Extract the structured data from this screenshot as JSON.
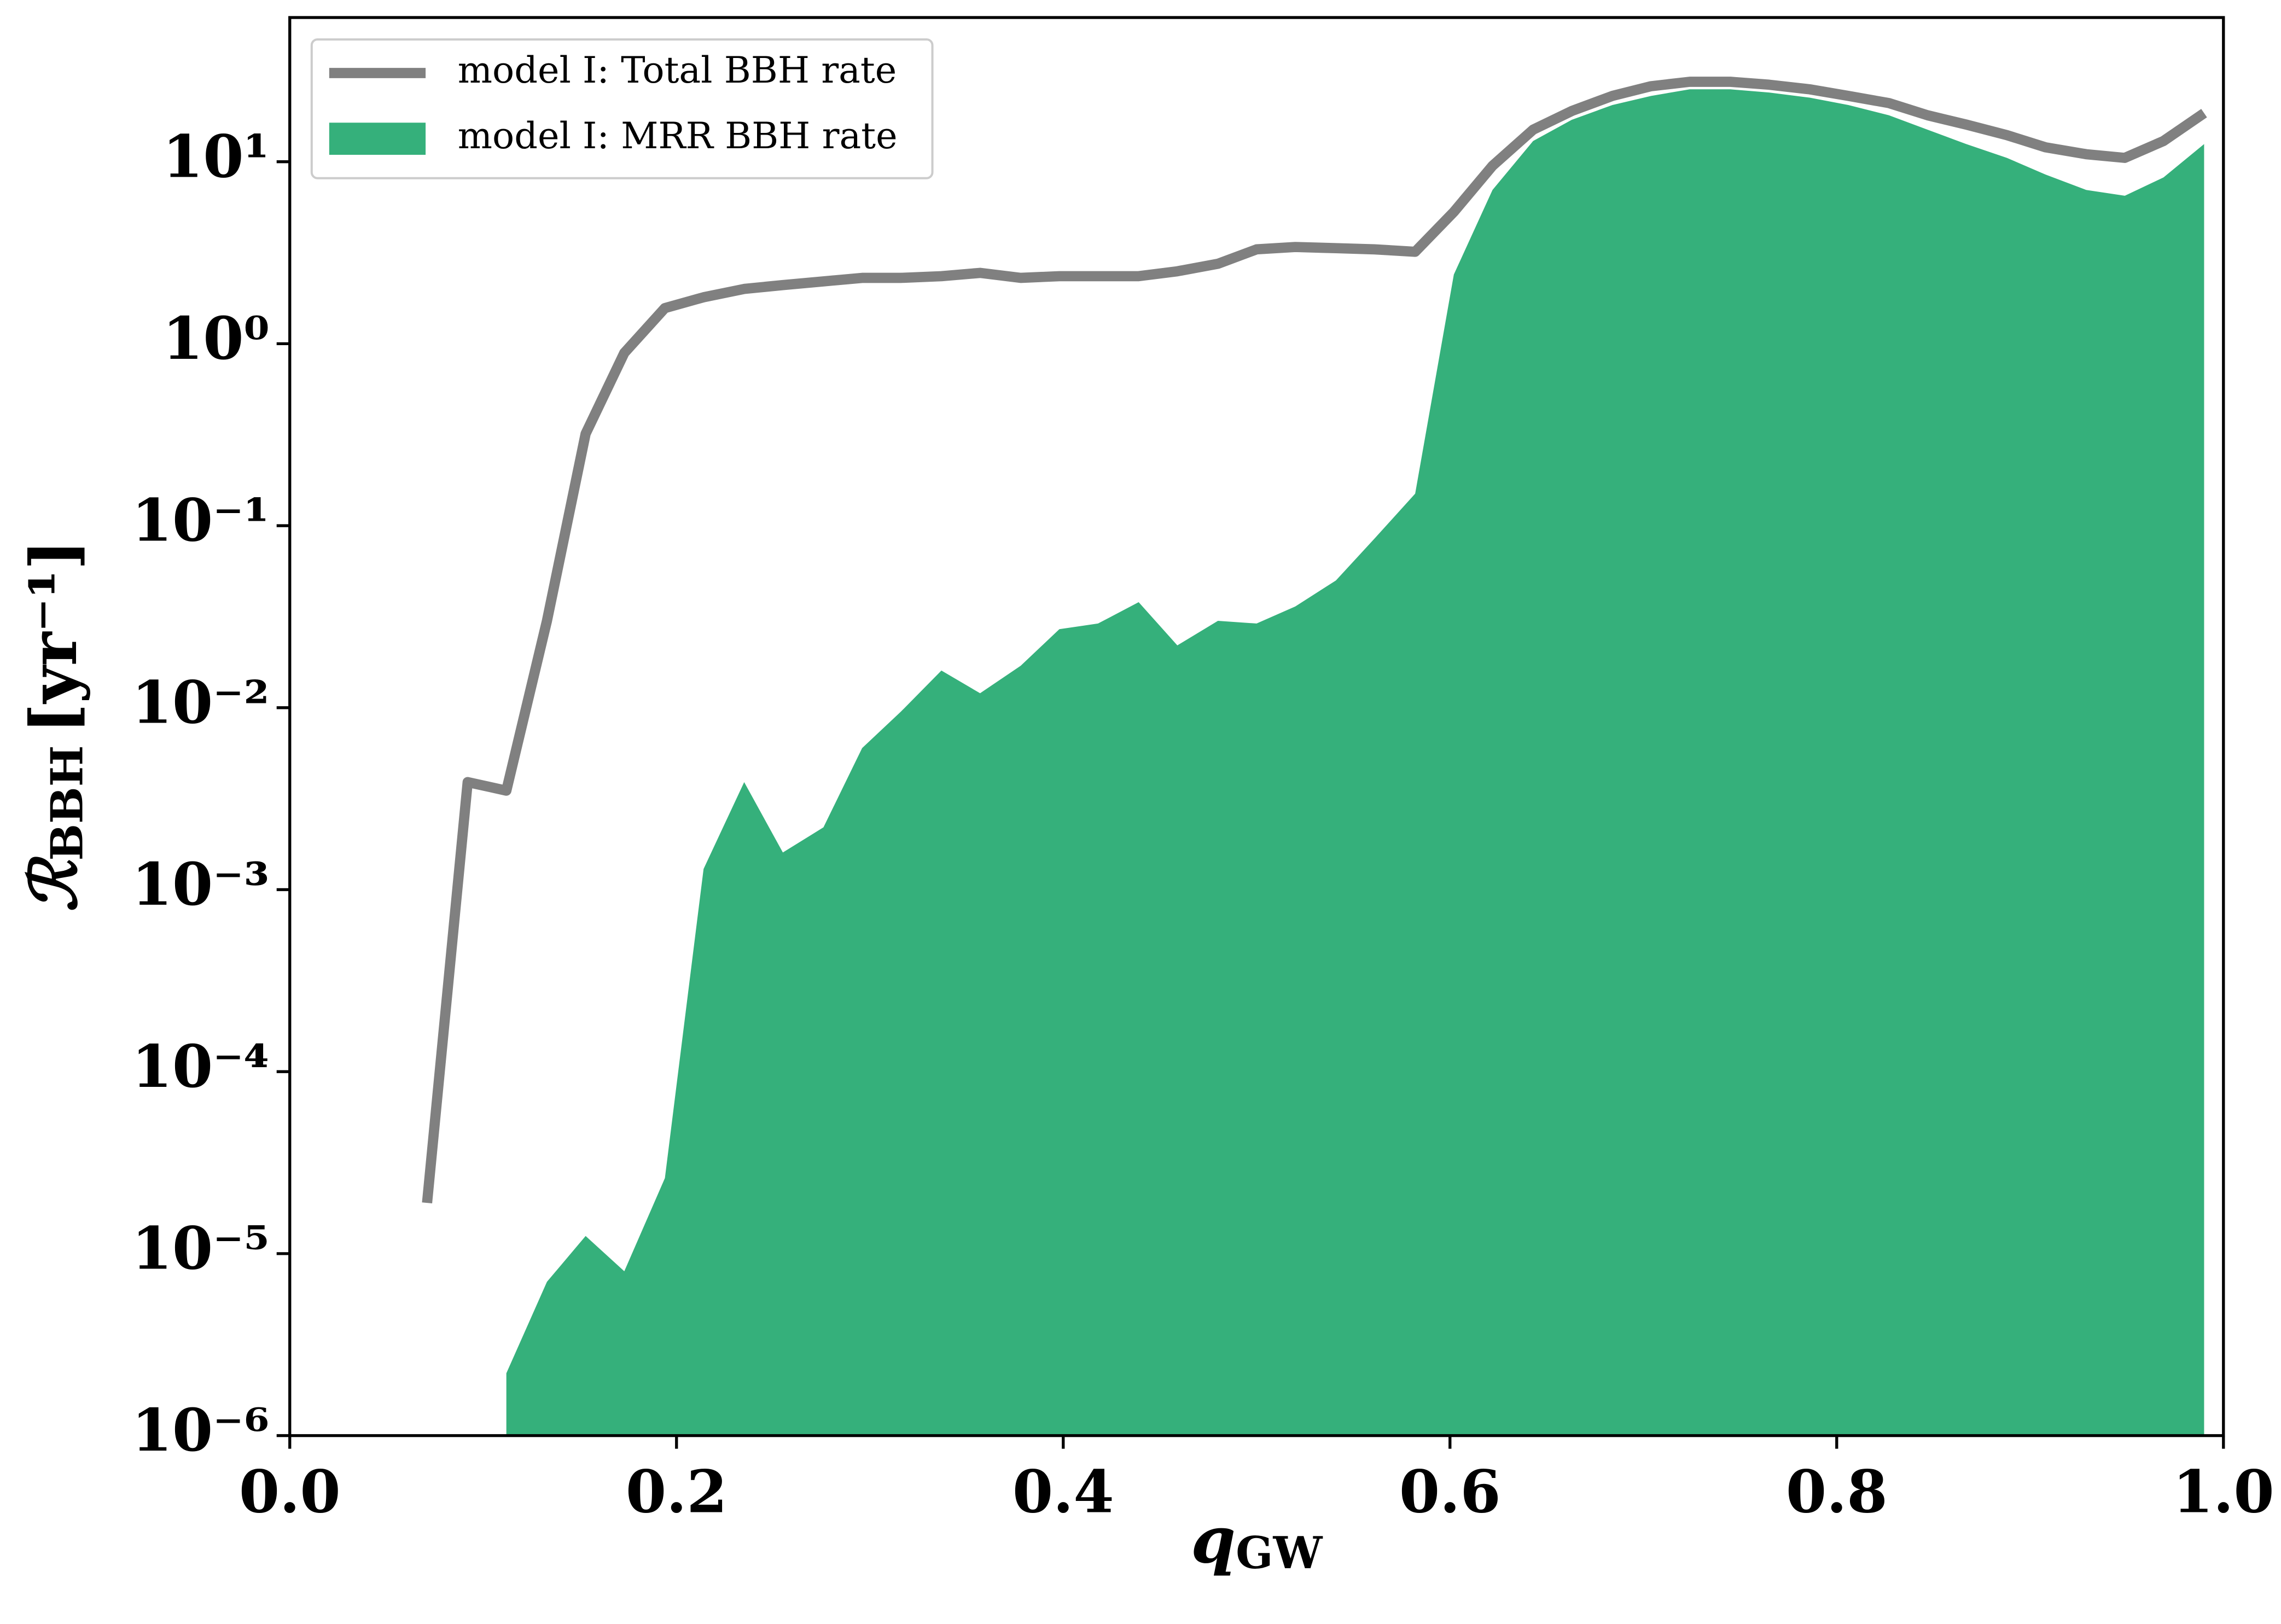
{
  "chart_data": {
    "type": "line-area",
    "xlabel": {
      "symbol": "q",
      "subscript": "GW"
    },
    "ylabel": {
      "symbol": "ℛ",
      "subscript": "BBH",
      "unit": "[yr⁻¹]"
    },
    "xlim": [
      0.0,
      1.0
    ],
    "xticks": [
      {
        "value": 0.0,
        "label": "0.0"
      },
      {
        "value": 0.2,
        "label": "0.2"
      },
      {
        "value": 0.4,
        "label": "0.4"
      },
      {
        "value": 0.6,
        "label": "0.6"
      },
      {
        "value": 0.8,
        "label": "0.8"
      },
      {
        "value": 1.0,
        "label": "1.0"
      }
    ],
    "ylim": [
      1e-06,
      62
    ],
    "yscale": "log",
    "yticks": [
      {
        "value": 1e-06,
        "label": "10⁻⁶"
      },
      {
        "value": 1e-05,
        "label": "10⁻⁵"
      },
      {
        "value": 0.0001,
        "label": "10⁻⁴"
      },
      {
        "value": 0.001,
        "label": "10⁻³"
      },
      {
        "value": 0.01,
        "label": "10⁻²"
      },
      {
        "value": 0.1,
        "label": "10⁻¹"
      },
      {
        "value": 1,
        "label": "10⁰"
      },
      {
        "value": 10,
        "label": "10¹"
      }
    ],
    "legend": "upper left",
    "series": [
      {
        "name": "model I: Total BBH rate",
        "kind": "line",
        "color": "#808080",
        "x": [
          0.071,
          0.092,
          0.112,
          0.133,
          0.153,
          0.173,
          0.194,
          0.214,
          0.235,
          0.255,
          0.276,
          0.296,
          0.316,
          0.337,
          0.357,
          0.378,
          0.398,
          0.418,
          0.439,
          0.459,
          0.48,
          0.5,
          0.52,
          0.541,
          0.561,
          0.582,
          0.602,
          0.622,
          0.643,
          0.663,
          0.684,
          0.704,
          0.724,
          0.745,
          0.765,
          0.786,
          0.806,
          0.827,
          0.847,
          0.867,
          0.888,
          0.908,
          0.929,
          0.949,
          0.969,
          0.99
        ],
        "values": [
          1.9e-05,
          0.0039,
          0.0035,
          0.03,
          0.32,
          0.89,
          1.57,
          1.8,
          2.0,
          2.1,
          2.2,
          2.3,
          2.3,
          2.35,
          2.45,
          2.3,
          2.35,
          2.35,
          2.35,
          2.5,
          2.75,
          3.3,
          3.4,
          3.35,
          3.3,
          3.2,
          5.3,
          9.5,
          15,
          19,
          23,
          26,
          27.5,
          27.5,
          26.5,
          25,
          23,
          21,
          18,
          16,
          14,
          12,
          11,
          10.5,
          13,
          18.5
        ]
      },
      {
        "name": "model I: MRR BBH rate",
        "kind": "area",
        "color": "#35b07b",
        "x": [
          0.112,
          0.133,
          0.153,
          0.173,
          0.194,
          0.214,
          0.235,
          0.255,
          0.276,
          0.296,
          0.316,
          0.337,
          0.357,
          0.378,
          0.398,
          0.418,
          0.439,
          0.459,
          0.48,
          0.5,
          0.52,
          0.541,
          0.561,
          0.582,
          0.602,
          0.622,
          0.643,
          0.663,
          0.684,
          0.704,
          0.724,
          0.745,
          0.765,
          0.786,
          0.806,
          0.827,
          0.847,
          0.867,
          0.888,
          0.908,
          0.929,
          0.949,
          0.969,
          0.99
        ],
        "values": [
          2.2e-06,
          7e-06,
          1.25e-05,
          8e-06,
          2.6e-05,
          0.0013,
          0.0039,
          0.0016,
          0.0022,
          0.006,
          0.0095,
          0.016,
          0.012,
          0.017,
          0.027,
          0.029,
          0.038,
          0.022,
          0.03,
          0.029,
          0.036,
          0.05,
          0.085,
          0.15,
          2.4,
          7,
          13,
          17,
          20.5,
          23,
          25,
          25,
          24,
          22.5,
          20.5,
          18,
          15,
          12.5,
          10.5,
          8.5,
          7,
          6.5,
          8.2,
          12.5
        ]
      }
    ]
  }
}
